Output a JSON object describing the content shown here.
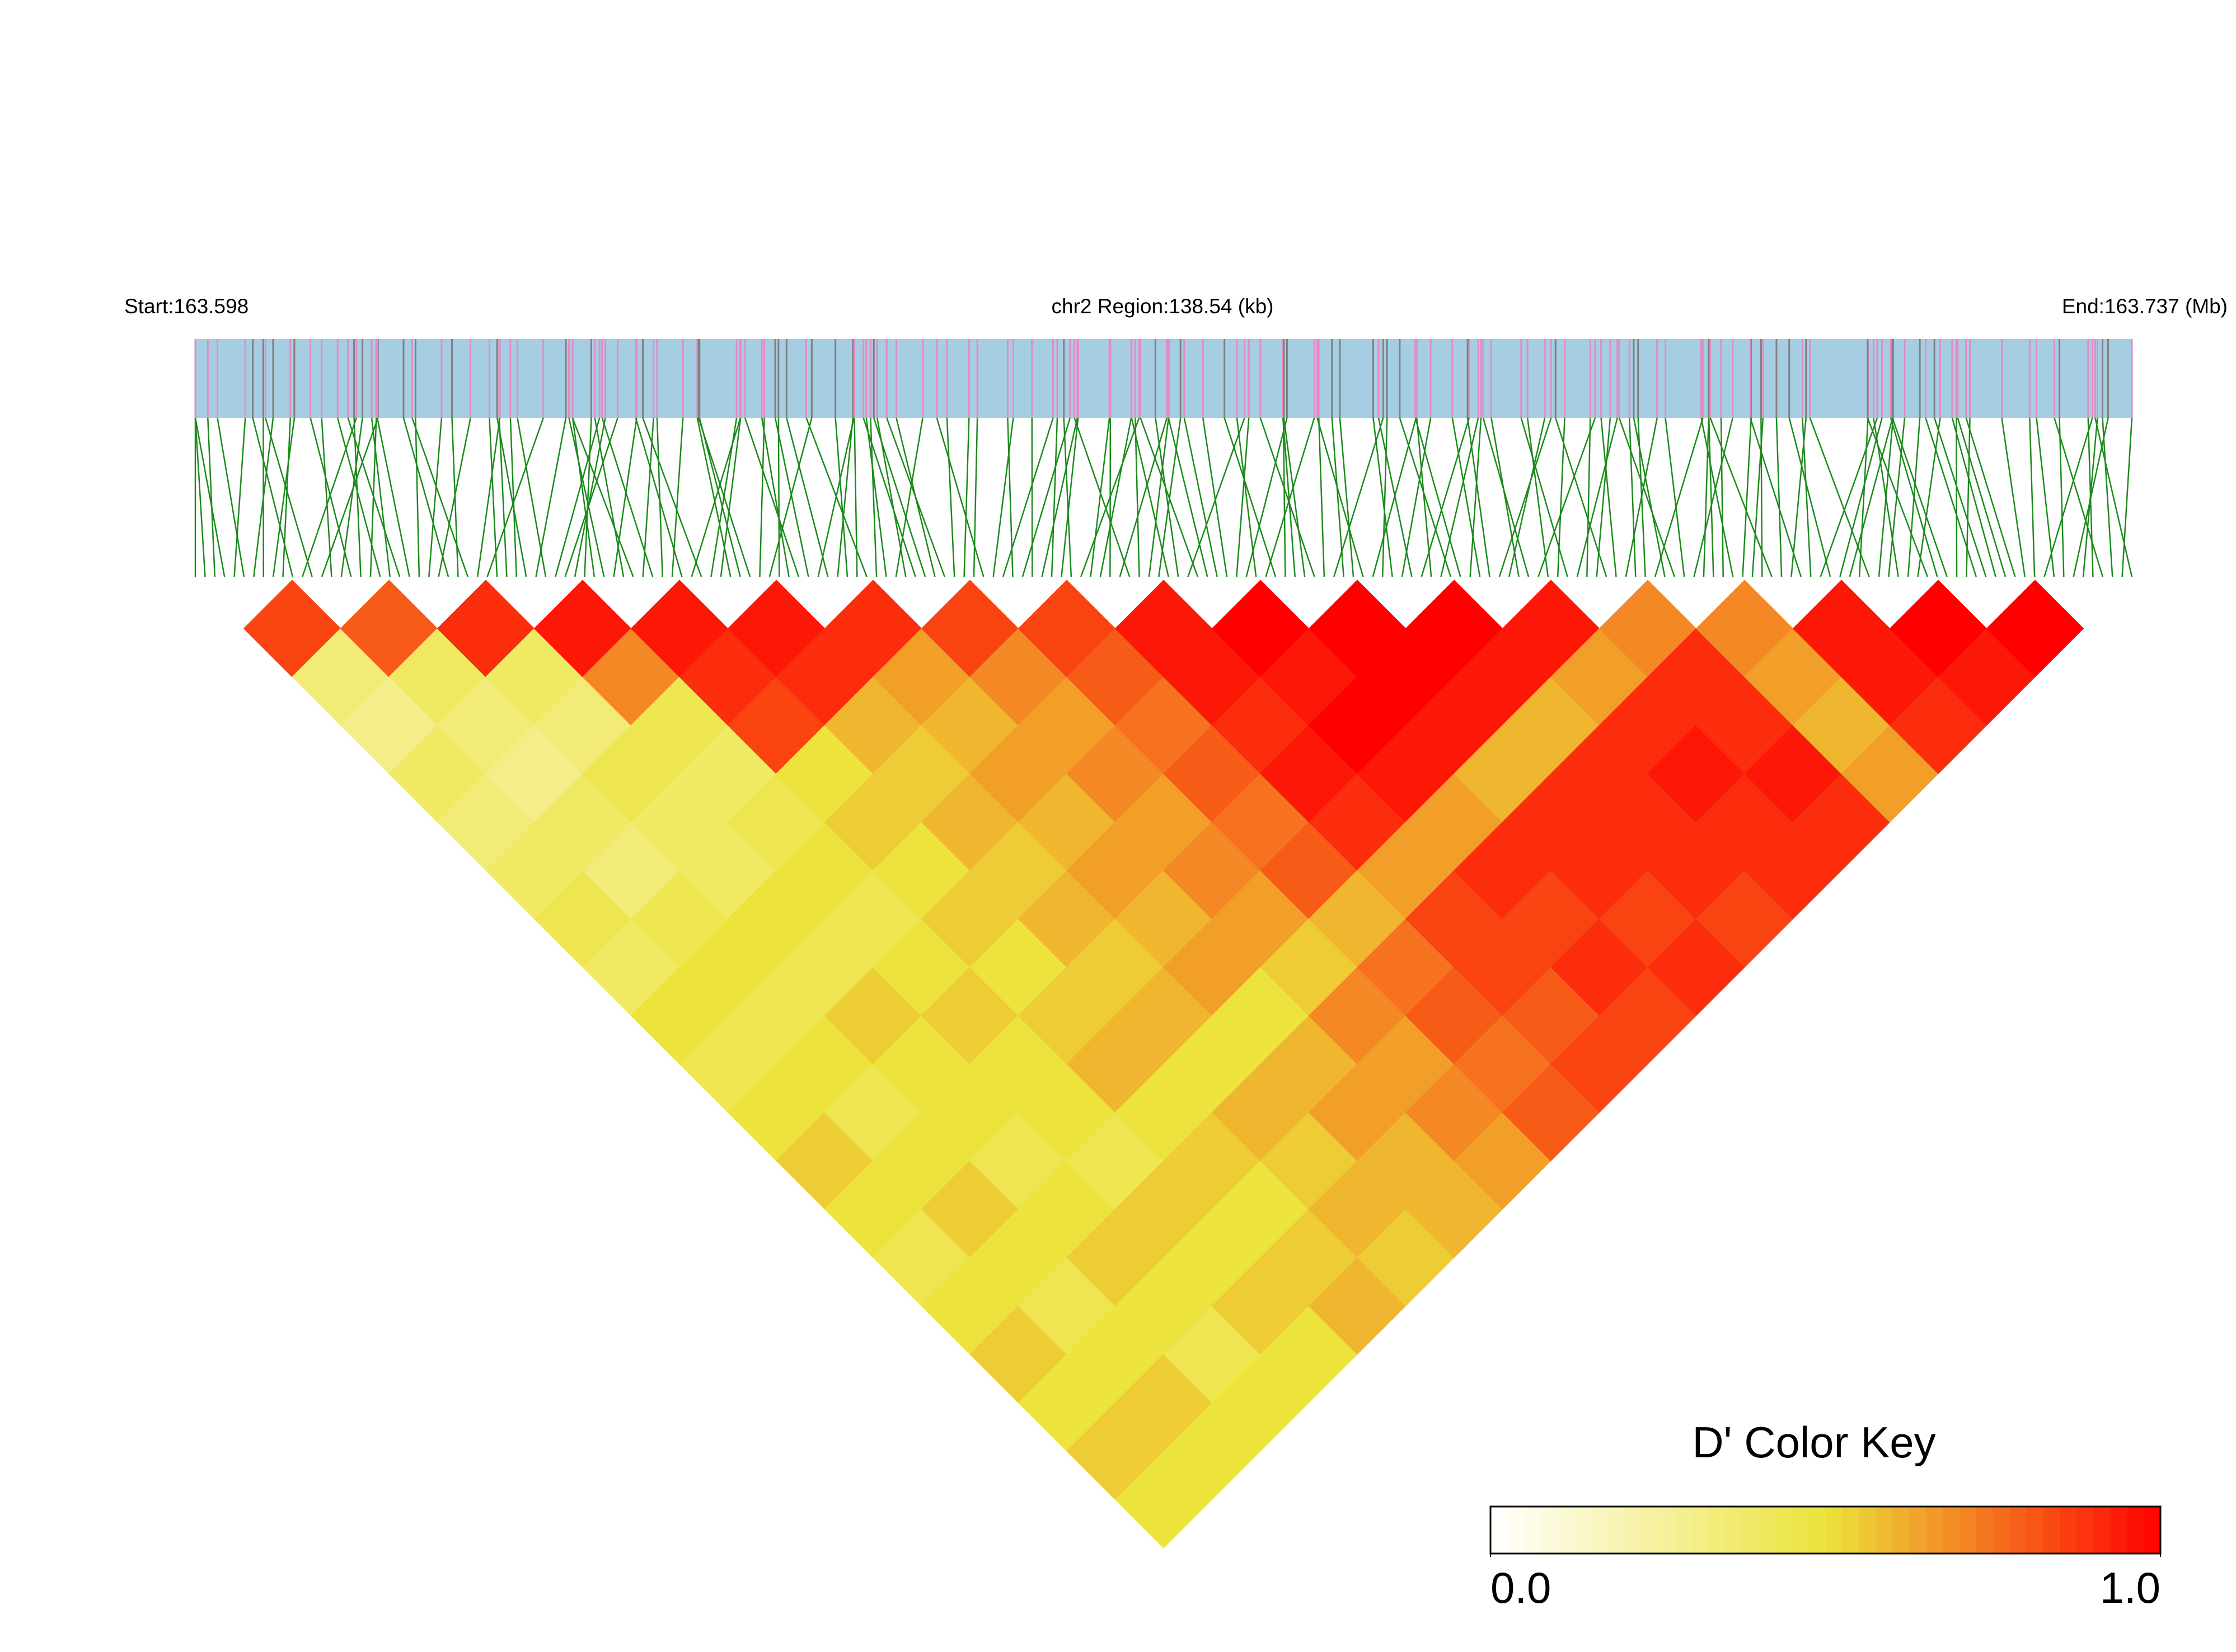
{
  "chart_data": {
    "type": "ld_heatmap",
    "start_label": "Start:163.598",
    "region_label": "chr2 Region:138.54 (kb)",
    "end_label": "End:163.737 (Mb)",
    "key_title": "D' Color Key",
    "clim": [
      0,
      1
    ],
    "cticks": [
      {
        "value": 0,
        "label": "0.0"
      },
      {
        "value": 1,
        "label": "1.0"
      }
    ],
    "colors": [
      "#ffffff",
      "#ece33c",
      "#ff0000"
    ],
    "values": [
      [
        0.85,
        0.35,
        0.3,
        0.4,
        0.35,
        0.4,
        0.45,
        0.4,
        0.5,
        0.45,
        0.5,
        0.55,
        0.5,
        0.45,
        0.5,
        0.55,
        0.5,
        0.55,
        0.5
      ],
      [
        0.8,
        0.4,
        0.35,
        0.3,
        0.4,
        0.35,
        0.45,
        0.5,
        0.45,
        0.5,
        0.45,
        0.5,
        0.55,
        0.5,
        0.45,
        0.5,
        0.55,
        0.5
      ],
      [
        0.9,
        0.4,
        0.35,
        0.45,
        0.4,
        0.4,
        0.5,
        0.45,
        0.55,
        0.5,
        0.5,
        0.45,
        0.5,
        0.55,
        0.5,
        0.45,
        0.5
      ],
      [
        0.95,
        0.7,
        0.45,
        0.4,
        0.45,
        0.5,
        0.45,
        0.5,
        0.55,
        0.5,
        0.5,
        0.45,
        0.55,
        0.5,
        0.55,
        0.5
      ],
      [
        0.95,
        0.9,
        0.85,
        0.5,
        0.55,
        0.5,
        0.55,
        0.5,
        0.55,
        0.6,
        0.5,
        0.55,
        0.5,
        0.55,
        0.6
      ],
      [
        0.95,
        0.9,
        0.6,
        0.55,
        0.6,
        0.55,
        0.6,
        0.55,
        0.6,
        0.5,
        0.6,
        0.55,
        0.6,
        0.55
      ],
      [
        0.9,
        0.65,
        0.6,
        0.65,
        0.6,
        0.65,
        0.6,
        0.65,
        0.5,
        0.6,
        0.65,
        0.6,
        0.6
      ],
      [
        0.85,
        0.7,
        0.65,
        0.7,
        0.65,
        0.7,
        0.65,
        0.55,
        0.7,
        0.65,
        0.7,
        0.65
      ],
      [
        0.85,
        0.8,
        0.75,
        0.8,
        0.75,
        0.8,
        0.6,
        0.75,
        0.8,
        0.75,
        0.8
      ],
      [
        0.95,
        0.95,
        0.9,
        0.95,
        0.9,
        0.65,
        0.85,
        0.85,
        0.8,
        0.85
      ],
      [
        1,
        0.95,
        1,
        0.95,
        0.65,
        0.9,
        0.85,
        0.9,
        0.85
      ],
      [
        1,
        1,
        0.95,
        0.6,
        0.9,
        0.9,
        0.85,
        0.9
      ],
      [
        1,
        0.95,
        0.6,
        0.9,
        0.9,
        0.9,
        0.85
      ],
      [
        0.95,
        0.65,
        0.9,
        0.95,
        0.9,
        0.9
      ],
      [
        0.7,
        0.9,
        0.9,
        0.95,
        0.9
      ],
      [
        0.7,
        0.65,
        0.6,
        0.65
      ],
      [
        0.95,
        0.95,
        0.9
      ],
      [
        1,
        0.95
      ],
      [
        1
      ]
    ]
  }
}
